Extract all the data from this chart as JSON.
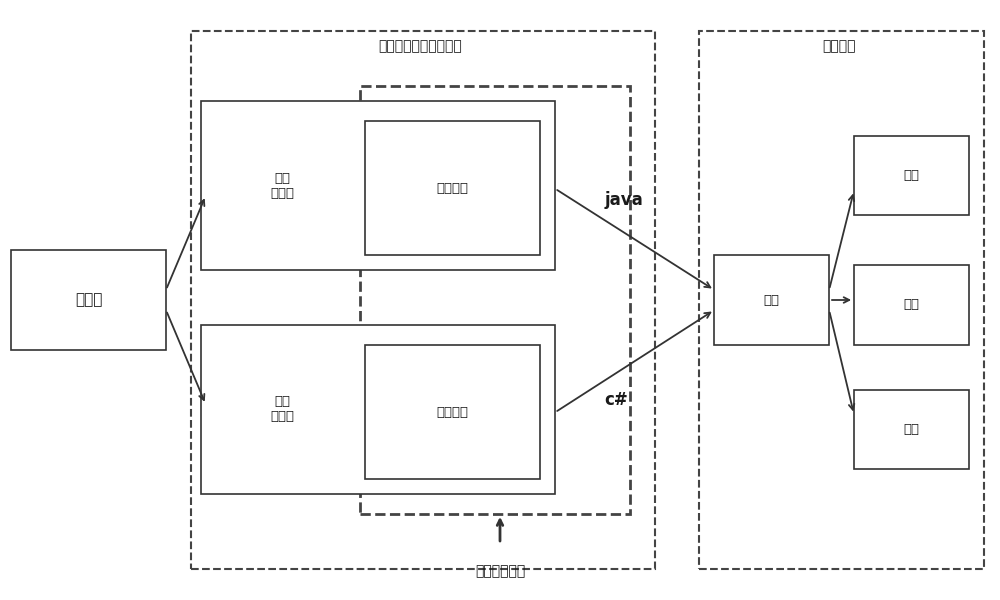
{
  "bg_color": "#ffffff",
  "text_color": "#1a1a1a",
  "box_edge_color": "#333333",
  "dashed_edge_color": "#444444",
  "fig_width": 10.0,
  "fig_height": 6.0,
  "dpi": 100,
  "labels": {
    "client": "客户端",
    "server1_app": "应用\n服务器",
    "server1_session": "会话框架",
    "server2_app": "应用\n服务器",
    "server2_session": "会话框架",
    "cache_center": "缓存",
    "cache_top": "缓存",
    "cache_mid": "缓存",
    "cache_bot": "缓存",
    "label_dist_cluster": "分布式应用服务器集群",
    "label_cache_cluster": "缓存集群",
    "label_java": "java",
    "label_csharp": "c#",
    "label_hetero": "异构会话框架"
  }
}
